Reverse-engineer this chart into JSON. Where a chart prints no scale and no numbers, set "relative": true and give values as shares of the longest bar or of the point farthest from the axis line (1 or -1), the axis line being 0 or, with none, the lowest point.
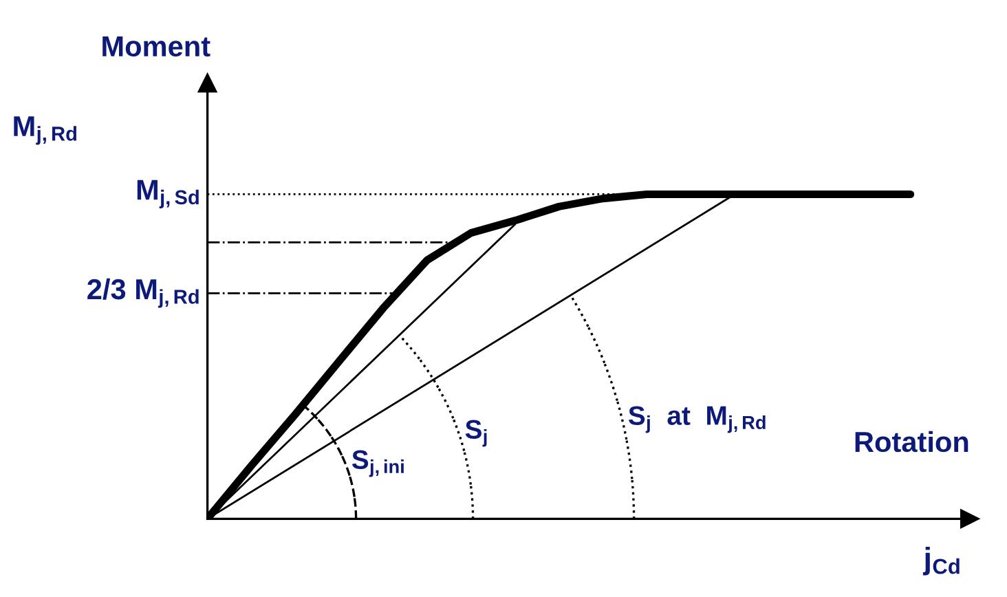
{
  "chart_data": {
    "type": "line",
    "relative": true,
    "title": "Moment",
    "xlabel": "Rotation",
    "categories": [
      null,
      null,
      null,
      null,
      null,
      null,
      null,
      null,
      null,
      null,
      null,
      null,
      null,
      null,
      null,
      null,
      null,
      null
    ],
    "series": [
      {
        "color": "#000000",
        "values": [
          0,
          0.164,
          0.322,
          0.486,
          0.649,
          0.797,
          0.881,
          0.919,
          0.962,
          0.987,
          1,
          1,
          1,
          1,
          1,
          1,
          1,
          null
        ],
        "line_style": "solid"
      },
      {
        "color": "#000000",
        "values": [
          0,
          null,
          null,
          null,
          null,
          null,
          null,
          0.907,
          null,
          null,
          null,
          null,
          null,
          null,
          null,
          null,
          null,
          null
        ],
        "line_style": "solid"
      },
      {
        "color": "#000000",
        "values": [
          0,
          null,
          null,
          null,
          null,
          null,
          null,
          null,
          null,
          null,
          null,
          null,
          1,
          null,
          null,
          null,
          null,
          null
        ],
        "line_style": "solid"
      }
    ],
    "ref_lines": [
      {
        "axis": "y",
        "value": 1,
        "label": "M$_{j,Sd}$",
        "line_style": "dotted",
        "color": "#000000"
      },
      {
        "axis": "y",
        "value": 0.852,
        "label": null,
        "line_style": "dashdot",
        "color": "#000000"
      },
      {
        "axis": "y",
        "value": 0.695,
        "label": "2/3 M$_{j,Rd}$",
        "line_style": "dashdot",
        "color": "#000000"
      }
    ],
    "annotations": [
      "S$_{j,ini}$",
      "S$_{j}$",
      "S$_{j}$  at  M$_{j,Rd}$",
      "M$_{j,Rd}$",
      "j$_{Cd}$"
    ],
    "grid": false,
    "legend": false
  }
}
